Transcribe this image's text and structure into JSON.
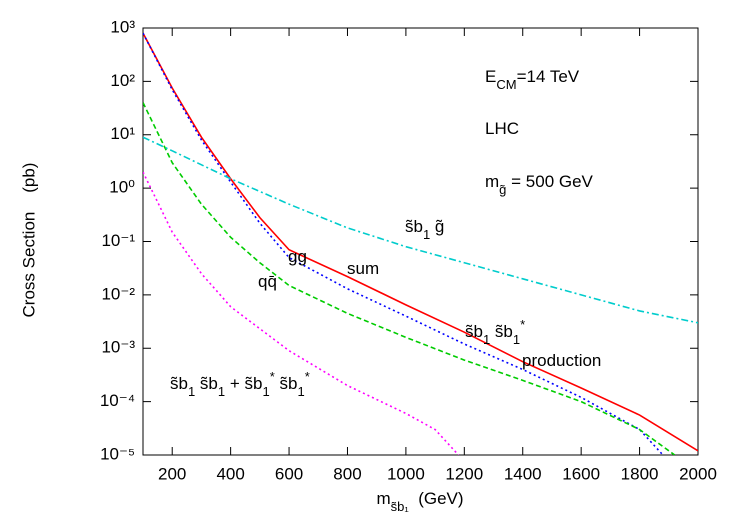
{
  "chart_data": {
    "type": "line",
    "log_y": true,
    "xlabel": [
      {
        "t": "m"
      },
      {
        "t": "s̃b₁",
        "sub": true
      },
      {
        "t": "  (GeV)"
      }
    ],
    "ylabel": "Cross Section    (pb)",
    "xlim": [
      100,
      2000
    ],
    "xticks": [
      200,
      400,
      600,
      800,
      1000,
      1200,
      1400,
      1600,
      1800,
      2000
    ],
    "ylim": [
      1e-05,
      1000
    ],
    "yticks": [
      {
        "value": 1e-05,
        "label": "10⁻⁵"
      },
      {
        "value": 0.0001,
        "label": "10⁻⁴"
      },
      {
        "value": 0.001,
        "label": "10⁻³"
      },
      {
        "value": 0.01,
        "label": "10⁻²"
      },
      {
        "value": 0.1,
        "label": "10⁻¹"
      },
      {
        "value": 1,
        "label": "10⁰"
      },
      {
        "value": 10,
        "label": "10¹"
      },
      {
        "value": 100,
        "label": "10²"
      },
      {
        "value": 1000,
        "label": "10³"
      }
    ],
    "series": [
      {
        "color": "#ff0000",
        "style": "solid",
        "x": [
          100,
          200,
          300,
          400,
          500,
          600,
          800,
          1000,
          1200,
          1400,
          1600,
          1800,
          2000
        ],
        "values": [
          800,
          75,
          9,
          1.5,
          0.28,
          0.07,
          0.022,
          0.0065,
          0.002,
          0.00056,
          0.00018,
          5.6e-05,
          1.2e-05
        ]
      },
      {
        "color": "#0000ff",
        "style": "dotted",
        "x": [
          100,
          200,
          300,
          400,
          500,
          600,
          800,
          1000,
          1200,
          1400,
          1600,
          1800,
          1880
        ],
        "values": [
          800,
          70,
          8,
          1.3,
          0.22,
          0.05,
          0.013,
          0.004,
          0.0012,
          0.0004,
          0.00012,
          3e-05,
          1e-05
        ]
      },
      {
        "color": "#00cc00",
        "style": "dashed",
        "x": [
          100,
          200,
          300,
          400,
          500,
          600,
          800,
          1000,
          1200,
          1400,
          1600,
          1800,
          1920
        ],
        "values": [
          40,
          3,
          0.5,
          0.12,
          0.04,
          0.015,
          0.0045,
          0.0016,
          0.0006,
          0.00025,
          0.0001,
          3e-05,
          1e-05
        ]
      },
      {
        "color": "#ff00ff",
        "style": "dotted",
        "x": [
          100,
          200,
          300,
          400,
          600,
          800,
          1000,
          1100,
          1180
        ],
        "values": [
          2,
          0.15,
          0.025,
          0.006,
          0.0009,
          0.0002,
          6e-05,
          3e-05,
          1e-05
        ]
      },
      {
        "color": "#00cccc",
        "style": "dashdot",
        "x": [
          100,
          200,
          400,
          600,
          800,
          1000,
          1200,
          1400,
          1600,
          1800,
          2000
        ],
        "values": [
          9,
          5,
          1.5,
          0.5,
          0.18,
          0.08,
          0.04,
          0.02,
          0.01,
          0.005,
          0.003
        ]
      }
    ],
    "annotations": [
      [
        {
          "t": "E"
        },
        {
          "t": "CM",
          "sub": true
        },
        {
          "t": "=14 TeV"
        }
      ],
      [
        {
          "t": "LHC"
        }
      ],
      [
        {
          "t": "m"
        },
        {
          "t": "g̃",
          "sub": true
        },
        {
          "t": " = 500 GeV"
        }
      ],
      [
        {
          "t": "s̃b"
        },
        {
          "t": "1",
          "sub": true
        },
        {
          "t": " g̃"
        }
      ],
      [
        {
          "t": "gg"
        }
      ],
      [
        {
          "t": "qq̄"
        }
      ],
      [
        {
          "t": "sum"
        }
      ],
      [
        {
          "t": "s̃b"
        },
        {
          "t": "1",
          "sub": true
        },
        {
          "t": " s̃b"
        },
        {
          "t": "1",
          "sub": true
        },
        {
          "t": "*",
          "sup": true
        }
      ],
      [
        {
          "t": "production"
        }
      ],
      [
        {
          "t": "s̃b"
        },
        {
          "t": "1",
          "sub": true
        },
        {
          "t": " s̃b"
        },
        {
          "t": "1",
          "sub": true
        },
        {
          "t": " + s̃b"
        },
        {
          "t": "1",
          "sub": true
        },
        {
          "t": "*",
          "sup": true
        },
        {
          "t": " s̃b"
        },
        {
          "t": "1",
          "sub": true
        },
        {
          "t": "*",
          "sup": true
        }
      ]
    ]
  }
}
